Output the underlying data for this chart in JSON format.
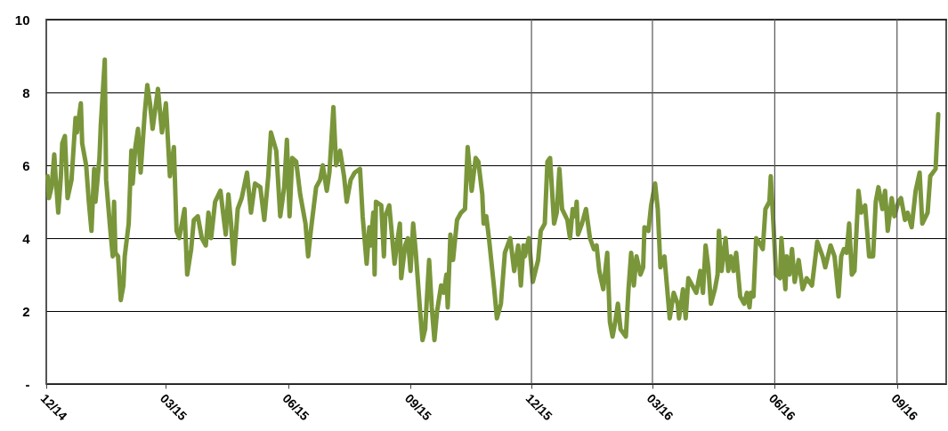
{
  "chart_data": {
    "type": "line",
    "grid": "y",
    "xlim": [
      "2014-12-01",
      "2016-10-08"
    ],
    "ylim": [
      0,
      10
    ],
    "yticks": [
      {
        "value": 0,
        "label": "-"
      },
      2,
      4,
      6,
      8,
      10
    ],
    "xticks": [
      {
        "value": "2014-12-01",
        "label": "12/14"
      },
      {
        "value": "2015-03-01",
        "label": "03/15"
      },
      {
        "value": "2015-06-01",
        "label": "06/15"
      },
      {
        "value": "2015-09-01",
        "label": "09/15"
      },
      {
        "value": "2015-12-01",
        "label": "12/15"
      },
      {
        "value": "2016-03-01",
        "label": "03/16"
      },
      {
        "value": "2016-06-01",
        "label": "06/16"
      },
      {
        "value": "2016-09-01",
        "label": "09/16"
      }
    ],
    "ref_lines": [
      {
        "axis": "x",
        "value": "2015-12-01",
        "color": "#555555"
      },
      {
        "axis": "x",
        "value": "2016-03-01",
        "color": "#555555"
      },
      {
        "axis": "x",
        "value": "2016-06-01",
        "color": "#555555"
      },
      {
        "axis": "x",
        "value": "2016-09-01",
        "color": "#555555"
      }
    ],
    "line_style": "solid",
    "marker": "none",
    "x": [
      "2014-12-02",
      "2014-12-03",
      "2014-12-05",
      "2014-12-07",
      "2014-12-08",
      "2014-12-10",
      "2014-12-12",
      "2014-12-13",
      "2014-12-15",
      "2014-12-17",
      "2014-12-20",
      "2014-12-23",
      "2014-12-24",
      "2014-12-27",
      "2014-12-28",
      "2014-12-31",
      "2015-01-02",
      "2015-01-04",
      "2015-01-06",
      "2015-01-07",
      "2015-01-10",
      "2015-01-11",
      "2015-01-14",
      "2015-01-15",
      "2015-01-18",
      "2015-01-20",
      "2015-01-21",
      "2015-01-22",
      "2015-01-24",
      "2015-01-26",
      "2015-01-28",
      "2015-01-29",
      "2015-02-01",
      "2015-02-03",
      "2015-02-04",
      "2015-02-06",
      "2015-02-08",
      "2015-02-10",
      "2015-02-13",
      "2015-02-15",
      "2015-02-17",
      "2015-02-19",
      "2015-02-23",
      "2015-02-26",
      "2015-03-01",
      "2015-03-04",
      "2015-03-07",
      "2015-03-09",
      "2015-03-11",
      "2015-03-15",
      "2015-03-17",
      "2015-03-20",
      "2015-03-22",
      "2015-03-25",
      "2015-03-28",
      "2015-03-31",
      "2015-04-02",
      "2015-04-04",
      "2015-04-07",
      "2015-04-11",
      "2015-04-15",
      "2015-04-17",
      "2015-04-19",
      "2015-04-21",
      "2015-04-24",
      "2015-04-27",
      "2015-05-01",
      "2015-05-04",
      "2015-05-07",
      "2015-05-11",
      "2015-05-14",
      "2015-05-17",
      "2015-05-19",
      "2015-05-23",
      "2015-05-26",
      "2015-05-29",
      "2015-05-31",
      "2015-06-02",
      "2015-06-04",
      "2015-06-07",
      "2015-06-10",
      "2015-06-14",
      "2015-06-16",
      "2015-06-18",
      "2015-06-22",
      "2015-06-25",
      "2015-06-27",
      "2015-06-30",
      "2015-07-02",
      "2015-07-05",
      "2015-07-07",
      "2015-07-10",
      "2015-07-13",
      "2015-07-15",
      "2015-07-18",
      "2015-07-21",
      "2015-07-25",
      "2015-07-27",
      "2015-07-30",
      "2015-08-01",
      "2015-08-02",
      "2015-08-04",
      "2015-08-05",
      "2015-08-06",
      "2015-08-10",
      "2015-08-12",
      "2015-08-13",
      "2015-08-16",
      "2015-08-20",
      "2015-08-22",
      "2015-08-24",
      "2015-08-25",
      "2015-08-28",
      "2015-08-30",
      "2015-09-01",
      "2015-09-03",
      "2015-09-05",
      "2015-09-08",
      "2015-09-10",
      "2015-09-12",
      "2015-09-15",
      "2015-09-17",
      "2015-09-19",
      "2015-09-21",
      "2015-09-24",
      "2015-09-26",
      "2015-09-28",
      "2015-09-29",
      "2015-10-01",
      "2015-10-03",
      "2015-10-06",
      "2015-10-09",
      "2015-10-12",
      "2015-10-14",
      "2015-10-17",
      "2015-10-20",
      "2015-10-22",
      "2015-10-25",
      "2015-10-26",
      "2015-10-28",
      "2015-10-30",
      "2015-11-03",
      "2015-11-05",
      "2015-11-08",
      "2015-11-11",
      "2015-11-15",
      "2015-11-18",
      "2015-11-21",
      "2015-11-23",
      "2015-11-25",
      "2015-11-26",
      "2015-11-29",
      "2015-12-02",
      "2015-12-06",
      "2015-12-08",
      "2015-12-11",
      "2015-12-13",
      "2015-12-15",
      "2015-12-18",
      "2015-12-20",
      "2015-12-22",
      "2015-12-24",
      "2015-12-28",
      "2015-12-30",
      "2016-01-01",
      "2016-01-03",
      "2016-01-04",
      "2016-01-05",
      "2016-01-08",
      "2016-01-11",
      "2016-01-14",
      "2016-01-17",
      "2016-01-19",
      "2016-01-21",
      "2016-01-24",
      "2016-01-27",
      "2016-01-29",
      "2016-01-31",
      "2016-02-02",
      "2016-02-04",
      "2016-02-06",
      "2016-02-10",
      "2016-02-12",
      "2016-02-14",
      "2016-02-16",
      "2016-02-18",
      "2016-02-21",
      "2016-02-23",
      "2016-02-24",
      "2016-02-27",
      "2016-02-29",
      "2016-03-03",
      "2016-03-05",
      "2016-03-07",
      "2016-03-10",
      "2016-03-14",
      "2016-03-17",
      "2016-03-20",
      "2016-03-21",
      "2016-03-24",
      "2016-03-26",
      "2016-03-28",
      "2016-03-31",
      "2016-04-03",
      "2016-04-06",
      "2016-04-08",
      "2016-04-10",
      "2016-04-12",
      "2016-04-14",
      "2016-04-17",
      "2016-04-19",
      "2016-04-20",
      "2016-04-22",
      "2016-04-25",
      "2016-04-27",
      "2016-04-29",
      "2016-05-01",
      "2016-05-03",
      "2016-05-06",
      "2016-05-09",
      "2016-05-11",
      "2016-05-13",
      "2016-05-14",
      "2016-05-16",
      "2016-05-18",
      "2016-05-20",
      "2016-05-23",
      "2016-05-25",
      "2016-05-28",
      "2016-05-29",
      "2016-05-31",
      "2016-06-02",
      "2016-06-05",
      "2016-06-06",
      "2016-06-09",
      "2016-06-10",
      "2016-06-12",
      "2016-06-14",
      "2016-06-16",
      "2016-06-19",
      "2016-06-22",
      "2016-06-25",
      "2016-06-29",
      "2016-07-01",
      "2016-07-03",
      "2016-07-07",
      "2016-07-09",
      "2016-07-13",
      "2016-07-16",
      "2016-07-19",
      "2016-07-21",
      "2016-07-23",
      "2016-07-25",
      "2016-07-27",
      "2016-07-29",
      "2016-07-31",
      "2016-08-03",
      "2016-08-05",
      "2016-08-08",
      "2016-08-11",
      "2016-08-14",
      "2016-08-16",
      "2016-08-18",
      "2016-08-21",
      "2016-08-23",
      "2016-08-25",
      "2016-08-28",
      "2016-08-30",
      "2016-09-02",
      "2016-09-04",
      "2016-09-07",
      "2016-09-09",
      "2016-09-12",
      "2016-09-15",
      "2016-09-18",
      "2016-09-20",
      "2016-09-24",
      "2016-09-26",
      "2016-09-30",
      "2016-10-02"
    ],
    "series": [
      {
        "color": "#7a963a",
        "values": [
          5.7,
          5.1,
          5.4,
          6.3,
          5.7,
          4.7,
          5.7,
          6.6,
          6.8,
          5.1,
          5.6,
          7.3,
          6.9,
          7.7,
          6.6,
          6.0,
          5.0,
          4.2,
          5.9,
          5.0,
          6.2,
          7.1,
          8.9,
          5.6,
          4.3,
          3.5,
          5.0,
          3.6,
          3.5,
          2.3,
          2.7,
          3.5,
          4.4,
          6.4,
          5.5,
          6.5,
          7.0,
          5.8,
          7.4,
          8.2,
          7.7,
          7.0,
          8.1,
          6.9,
          7.7,
          5.7,
          6.5,
          4.2,
          4.0,
          4.8,
          3.0,
          3.7,
          4.5,
          4.6,
          4.0,
          3.8,
          4.7,
          4.0,
          5.0,
          5.3,
          4.1,
          5.2,
          4.4,
          3.3,
          4.8,
          5.1,
          5.8,
          4.7,
          5.5,
          5.4,
          4.5,
          5.7,
          6.9,
          6.4,
          4.6,
          5.4,
          6.7,
          4.6,
          6.2,
          6.1,
          5.2,
          4.4,
          3.5,
          4.2,
          5.4,
          5.6,
          6.0,
          5.3,
          5.8,
          7.6,
          6.0,
          6.4,
          5.7,
          5.0,
          5.6,
          5.8,
          5.9,
          4.6,
          3.3,
          4.3,
          3.8,
          4.7,
          3.0,
          5.0,
          4.9,
          3.5,
          4.6,
          4.9,
          3.3,
          3.9,
          4.4,
          2.9,
          3.8,
          4.0,
          3.1,
          4.4,
          3.6,
          2.1,
          1.2,
          1.5,
          3.4,
          2.1,
          1.2,
          2.0,
          2.7,
          2.5,
          3.0,
          2.1,
          4.1,
          3.4,
          4.5,
          4.7,
          4.8,
          6.5,
          5.3,
          6.2,
          6.1,
          5.2,
          4.4,
          4.6,
          4.0,
          2.6,
          1.8,
          2.2,
          3.6,
          4.0,
          3.1,
          3.8,
          2.7,
          3.8,
          3.5,
          4.0,
          2.8,
          3.4,
          4.2,
          4.4,
          6.1,
          6.2,
          4.4,
          4.7,
          5.9,
          4.8,
          4.5,
          4.0,
          4.8,
          4.6,
          5.0,
          4.1,
          4.4,
          4.8,
          4.0,
          3.7,
          3.8,
          3.1,
          2.6,
          3.6,
          1.7,
          1.3,
          1.7,
          2.2,
          1.5,
          1.3,
          2.6,
          3.6,
          2.7,
          3.5,
          3.0,
          3.2,
          4.3,
          4.2,
          4.9,
          5.5,
          4.8,
          3.2,
          3.5,
          1.8,
          2.5,
          2.2,
          1.8,
          2.6,
          1.8,
          2.9,
          2.7,
          2.5,
          3.1,
          2.5,
          3.8,
          3.2,
          2.2,
          2.6,
          3.0,
          4.2,
          3.1,
          4.0,
          3.1,
          3.5,
          3.1,
          3.6,
          2.4,
          2.2,
          2.5,
          2.1,
          2.5,
          2.4,
          4.0,
          3.9,
          3.7,
          4.8,
          5.0,
          5.7,
          4.4,
          3.0,
          2.9,
          4.0,
          2.6,
          3.5,
          3.0,
          3.7,
          2.8,
          3.4,
          2.6,
          2.9,
          2.7,
          3.3,
          3.9,
          3.5,
          3.2,
          3.8,
          3.5,
          2.4,
          3.5,
          3.7,
          3.6,
          4.4,
          3.0,
          3.1,
          5.3,
          4.7,
          4.9,
          3.5,
          3.5,
          5.0,
          5.4,
          4.8,
          5.3,
          4.2,
          5.1,
          4.6,
          5.0,
          5.1,
          4.5,
          4.7,
          4.3,
          5.3,
          5.8,
          4.4,
          4.7,
          5.7,
          5.9,
          7.4
        ]
      }
    ]
  }
}
